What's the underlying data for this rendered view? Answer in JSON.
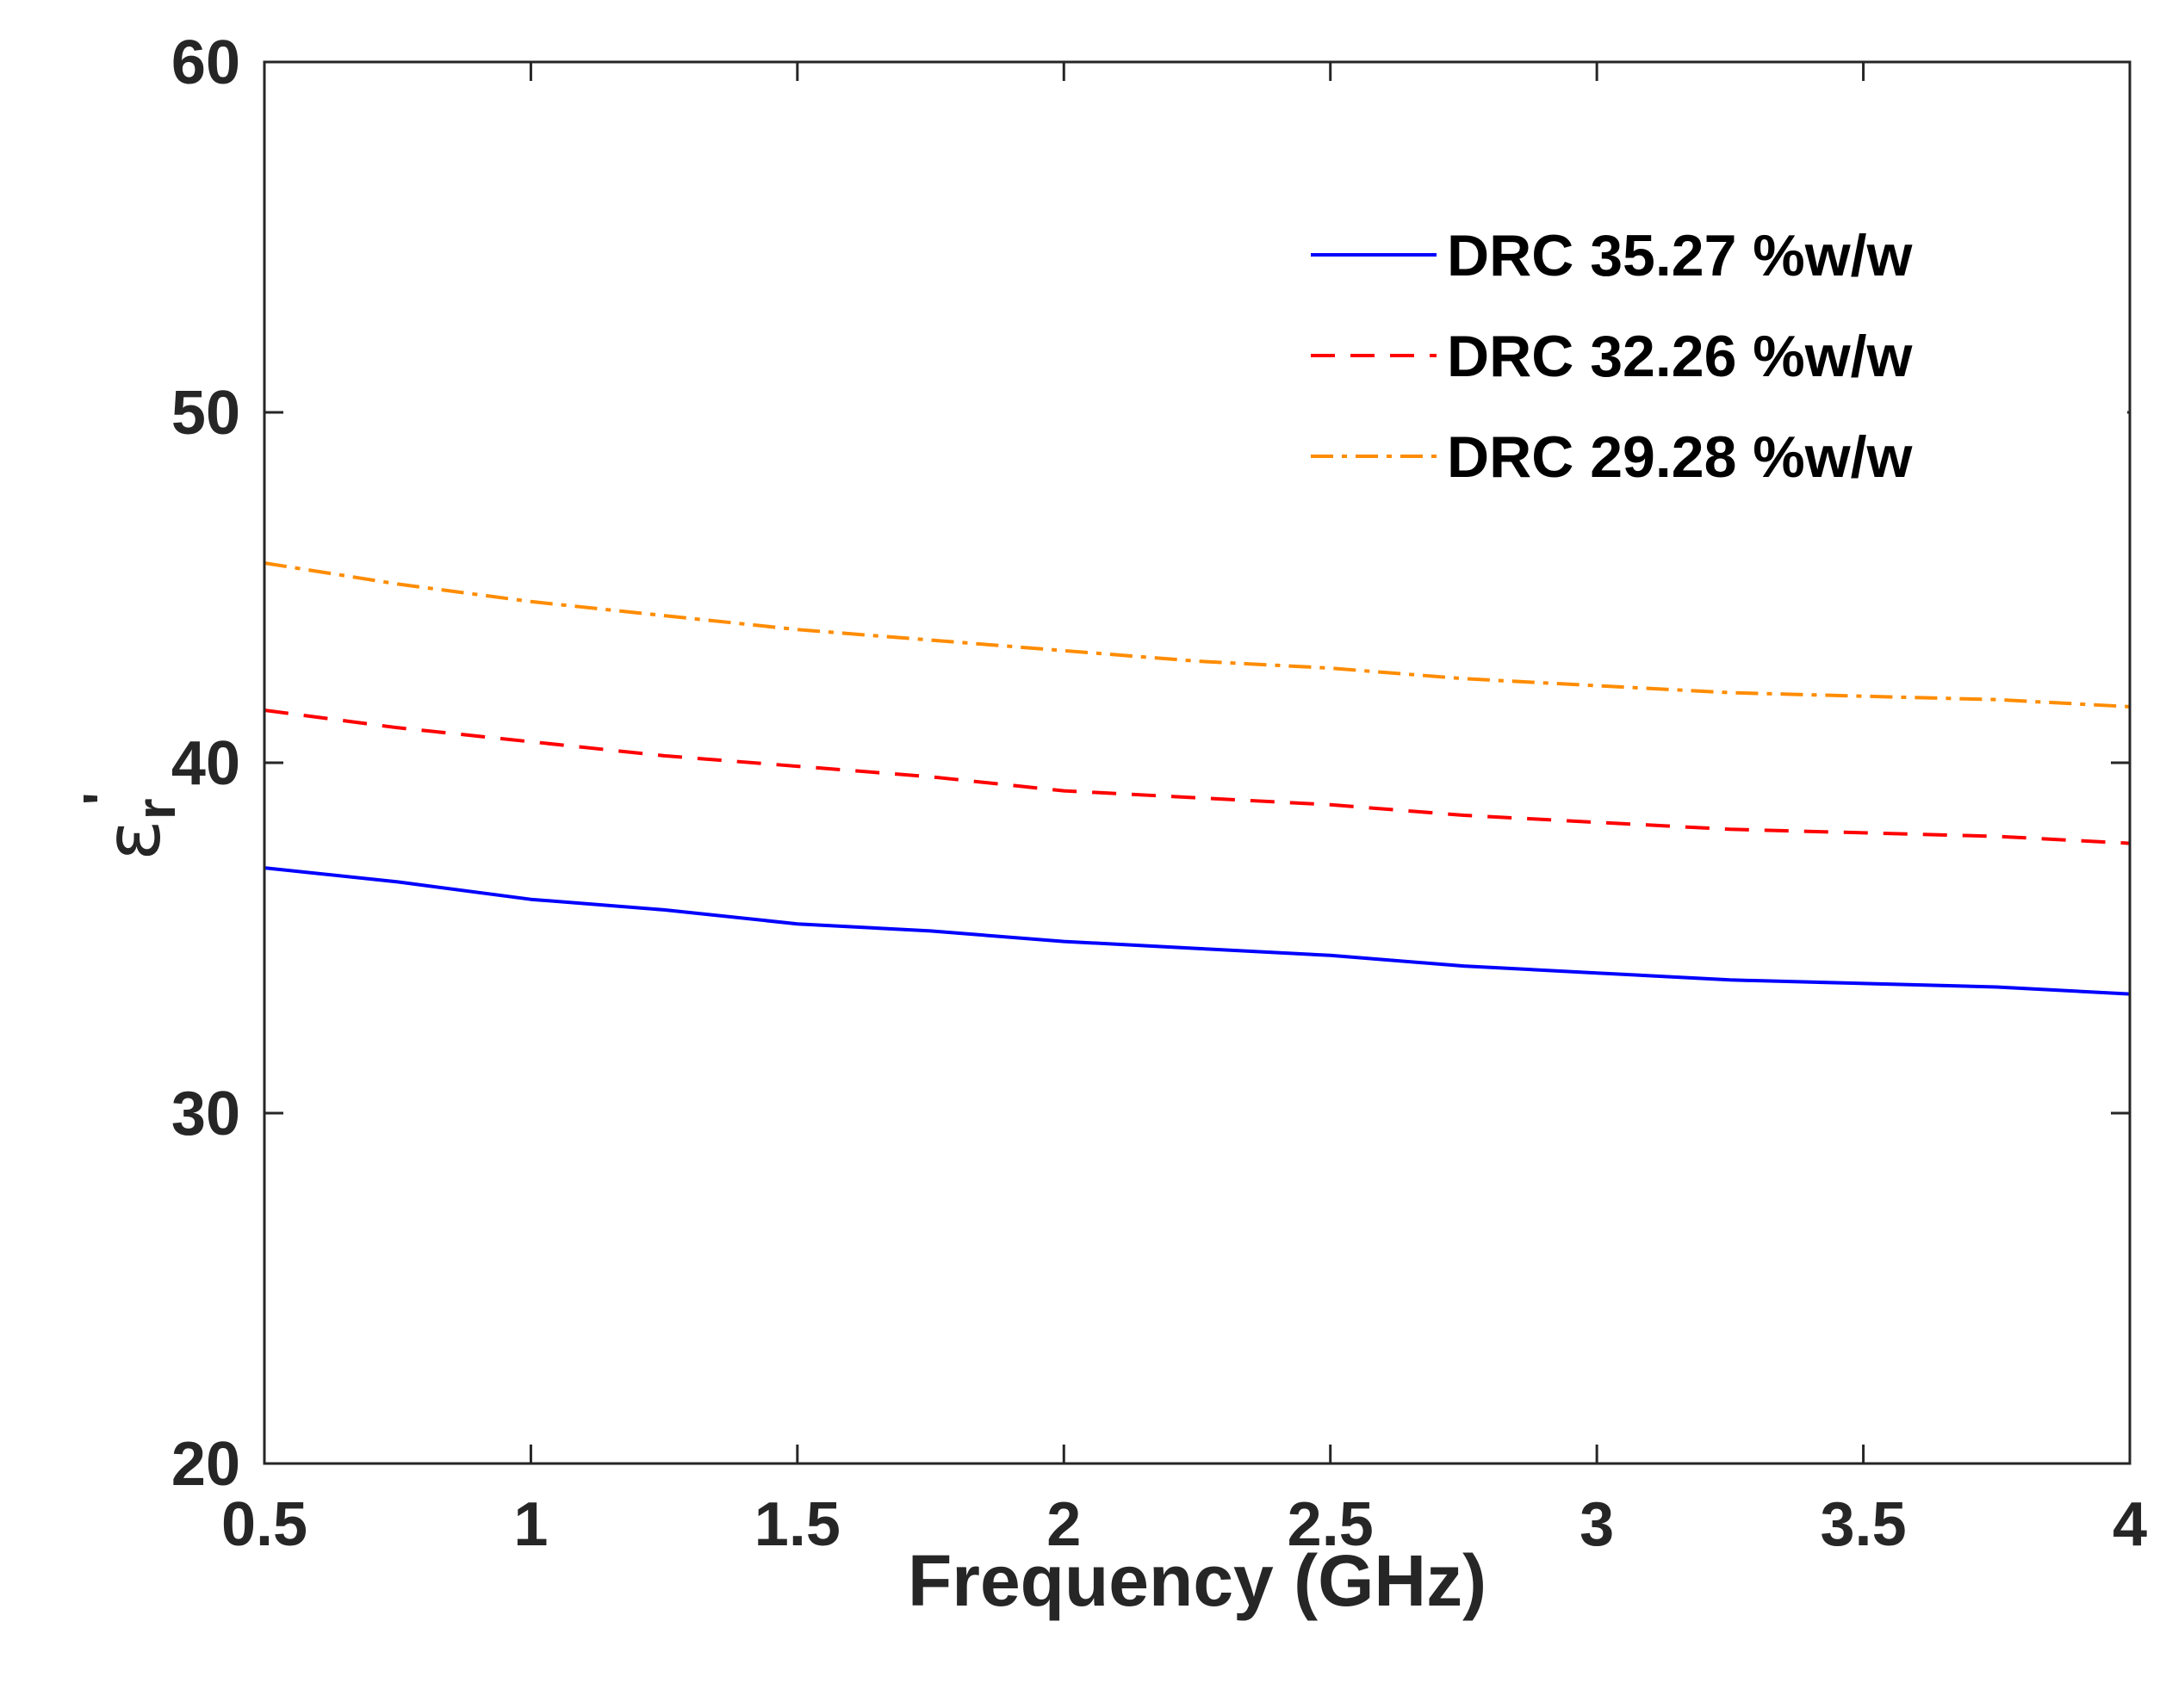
{
  "chart_data": {
    "type": "line",
    "title": "",
    "xlabel": "Frequency (GHz)",
    "ylabel": {
      "symbol": "ε",
      "subscript": "r",
      "prime": "'"
    },
    "xlim": [
      0.5,
      4
    ],
    "ylim": [
      20,
      60
    ],
    "xticks": [
      0.5,
      1,
      1.5,
      2,
      2.5,
      3,
      3.5,
      4
    ],
    "xtick_labels": [
      "0.5",
      "1",
      "1.5",
      "2",
      "2.5",
      "3",
      "3.5",
      "4"
    ],
    "yticks": [
      20,
      30,
      40,
      50,
      60
    ],
    "ytick_labels": [
      "20",
      "30",
      "40",
      "50",
      "60"
    ],
    "grid": false,
    "legend_position": "top-right",
    "series": [
      {
        "name": "DRC 35.27 %w/w",
        "color": "#0000ff",
        "style": "solid",
        "x": [
          0.5,
          0.75,
          1.0,
          1.25,
          1.5,
          1.75,
          2.0,
          2.25,
          2.5,
          2.75,
          3.0,
          3.25,
          3.5,
          3.75,
          4.0
        ],
        "y": [
          37.0,
          36.6,
          36.1,
          35.8,
          35.4,
          35.2,
          34.9,
          34.7,
          34.5,
          34.2,
          34.0,
          33.8,
          33.7,
          33.6,
          33.4
        ]
      },
      {
        "name": "DRC 32.26 %w/w",
        "color": "#ff0000",
        "style": "dashed",
        "x": [
          0.5,
          0.75,
          1.0,
          1.25,
          1.5,
          1.75,
          2.0,
          2.25,
          2.5,
          2.75,
          3.0,
          3.25,
          3.5,
          3.75,
          4.0
        ],
        "y": [
          41.5,
          41.0,
          40.6,
          40.2,
          39.9,
          39.6,
          39.2,
          39.0,
          38.8,
          38.5,
          38.3,
          38.1,
          38.0,
          37.9,
          37.7
        ]
      },
      {
        "name": "DRC 29.28 %w/w",
        "color": "#ff8c00",
        "style": "dashdot",
        "x": [
          0.5,
          0.75,
          1.0,
          1.25,
          1.5,
          1.75,
          2.0,
          2.25,
          2.5,
          2.75,
          3.0,
          3.25,
          3.5,
          3.75,
          4.0
        ],
        "y": [
          45.7,
          45.1,
          44.6,
          44.2,
          43.8,
          43.5,
          43.2,
          42.9,
          42.7,
          42.4,
          42.2,
          42.0,
          41.9,
          41.8,
          41.6
        ]
      }
    ]
  }
}
